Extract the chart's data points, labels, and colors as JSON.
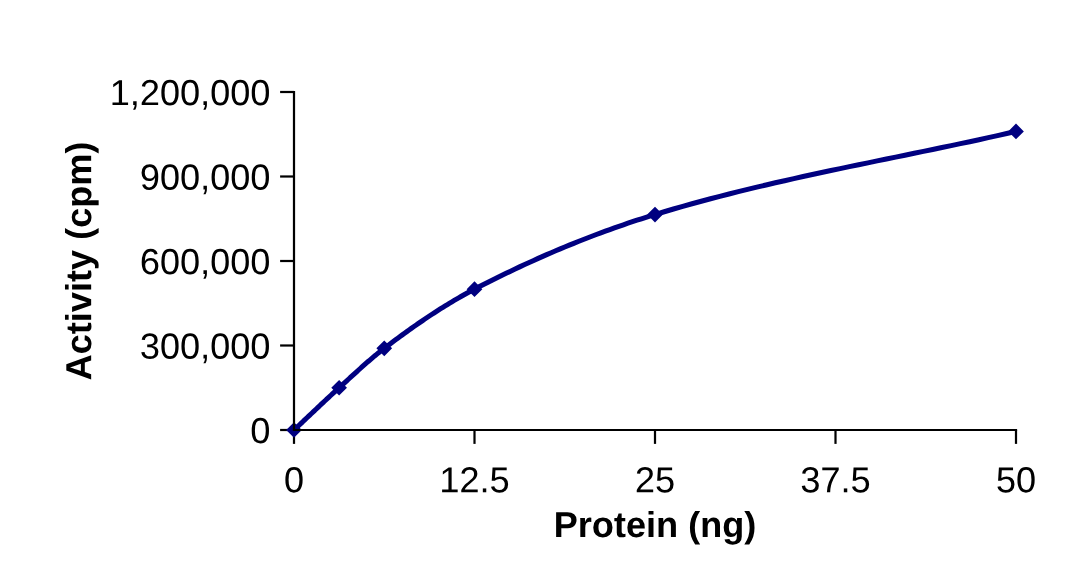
{
  "chart_data": {
    "type": "line",
    "xlabel": "Protein (ng)",
    "ylabel": "Activity (cpm)",
    "x": [
      0,
      3.125,
      6.25,
      12.5,
      25,
      50
    ],
    "series": [
      {
        "color": "#000080",
        "values": [
          0,
          150000,
          290000,
          500000,
          765000,
          1060000
        ]
      }
    ],
    "xlim": [
      0,
      50
    ],
    "xticks": [
      0,
      12.5,
      25,
      37.5,
      50
    ],
    "ylim": [
      0,
      1200000
    ],
    "yticks": [
      0,
      {
        "value": 300000,
        "label": "300,000"
      },
      {
        "value": 600000,
        "label": "600,000"
      },
      {
        "value": 900000,
        "label": "900,000"
      },
      {
        "value": 1200000,
        "label": "1,200,000"
      }
    ],
    "marker": "diamond",
    "line_style": "solid",
    "grid": false
  }
}
